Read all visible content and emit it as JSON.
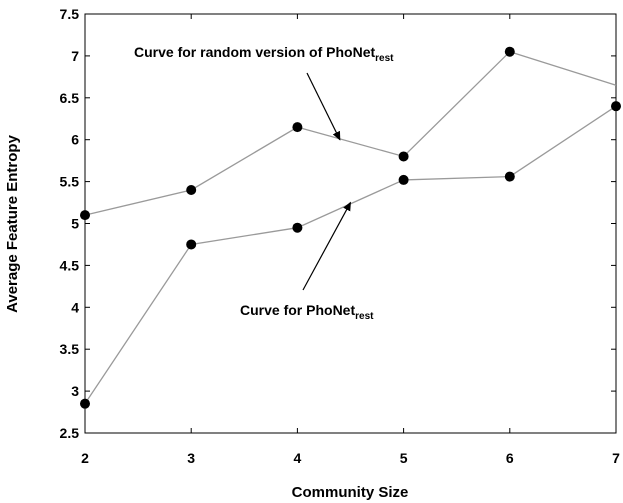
{
  "chart_data": {
    "type": "line",
    "xlabel": "Community Size",
    "ylabel": "Average Feature Entropy",
    "xlim": [
      2,
      7
    ],
    "ylim": [
      2.5,
      7.5
    ],
    "x_ticks": [
      "2",
      "3",
      "4",
      "5",
      "6",
      "7"
    ],
    "y_ticks": [
      "2.5",
      "3",
      "3.5",
      "4",
      "4.5",
      "5",
      "5.5",
      "6",
      "6.5",
      "7",
      "7.5"
    ],
    "x": [
      2,
      3,
      4,
      5,
      6,
      7
    ],
    "grid": false,
    "series": [
      {
        "values": [
          5.1,
          5.4,
          6.15,
          5.8,
          7.05,
          6.65
        ],
        "last_marker": false,
        "line_color": "#9a9a9a",
        "marker_color": "#000000"
      },
      {
        "values": [
          2.85,
          4.75,
          4.95,
          5.52,
          5.56,
          6.4
        ],
        "last_marker": true,
        "line_color": "#9a9a9a",
        "marker_color": "#000000"
      }
    ],
    "annotations": [
      {
        "main": "Curve for random version of PhoNet",
        "sub": "rest",
        "arrow_to": [
          4.4,
          6.0
        ]
      },
      {
        "main": "Curve for PhoNet",
        "sub": "rest",
        "arrow_to": [
          4.5,
          5.25
        ]
      }
    ]
  }
}
